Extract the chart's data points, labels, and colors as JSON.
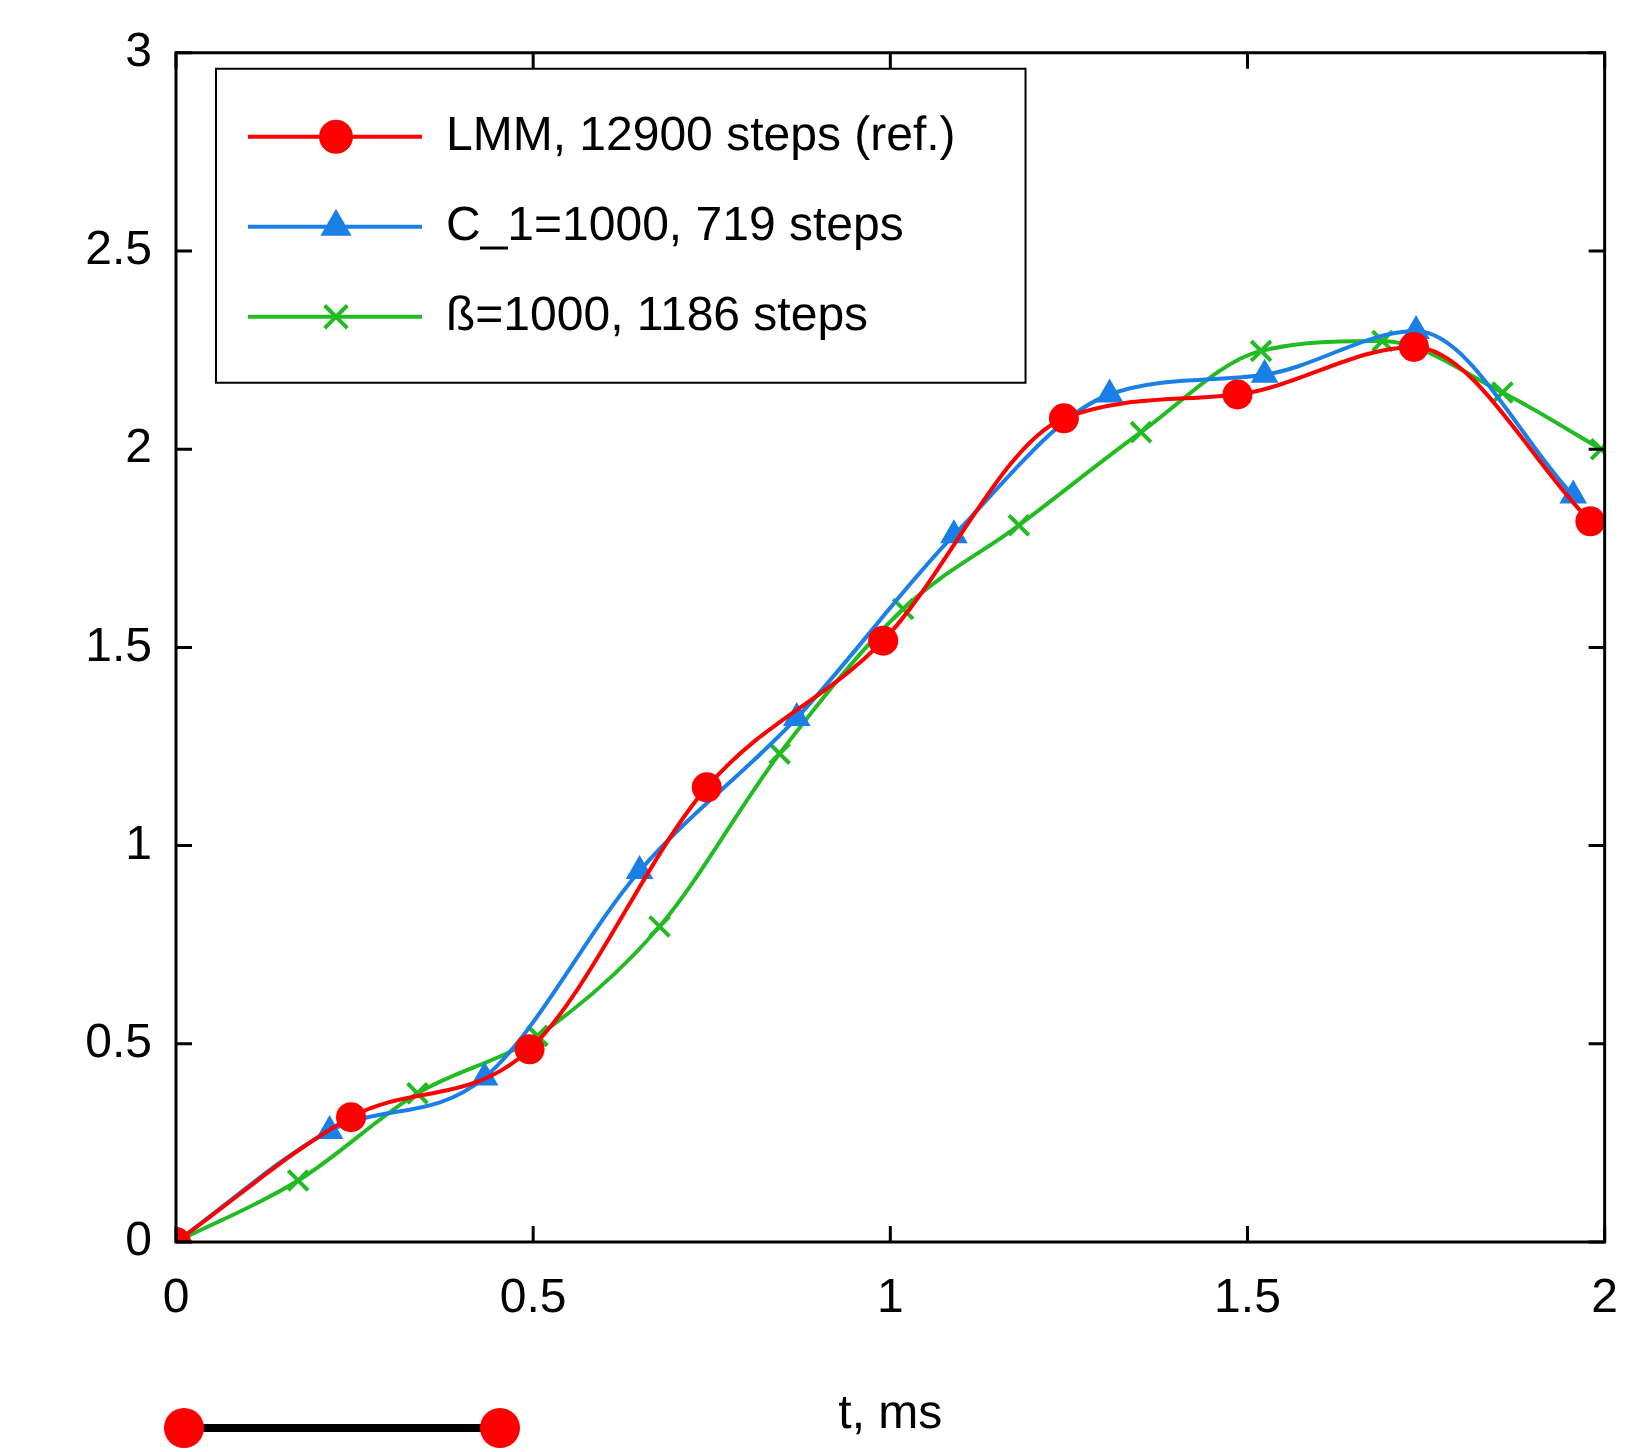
{
  "chart_data": {
    "type": "line",
    "xlabel": "t, ms",
    "xlim": [
      0,
      2
    ],
    "xticks": [
      0,
      0.5,
      1,
      1.5,
      2
    ],
    "ylim": [
      0,
      3
    ],
    "yticks": [
      0,
      0.5,
      1,
      1.5,
      2,
      2.5,
      3
    ],
    "grid": false,
    "legend": "top left",
    "line_style": "solid",
    "series": [
      {
        "name": "LMM, 12900 steps (ref.)",
        "color": "#ff0000",
        "marker": "circle",
        "x": [
          0,
          0.245,
          0.495,
          0.743,
          0.99,
          1.243,
          1.486,
          1.733,
          1.98
        ],
        "values": [
          0,
          0.315,
          0.486,
          1.147,
          1.517,
          2.078,
          2.138,
          2.258,
          1.818
        ]
      },
      {
        "name": "C_1=1000, 719 steps",
        "color": "#1a7fe6",
        "marker": "triangle",
        "x": [
          0,
          0.215,
          0.432,
          0.649,
          0.869,
          1.089,
          1.307,
          1.524,
          1.736,
          1.956
        ],
        "values": [
          0,
          0.28,
          0.415,
          0.936,
          1.322,
          1.783,
          2.138,
          2.188,
          2.298,
          1.883
        ]
      },
      {
        "name": "ß=1000, 1186 steps",
        "color": "#22bb22",
        "marker": "cross",
        "x": [
          0,
          0.171,
          0.338,
          0.506,
          0.677,
          0.845,
          1.018,
          1.18,
          1.351,
          1.519,
          1.689,
          1.857,
          1.995
        ],
        "values": [
          0,
          0.155,
          0.375,
          0.52,
          0.796,
          1.232,
          1.597,
          1.808,
          2.043,
          2.248,
          2.273,
          2.143,
          2.0
        ]
      }
    ]
  }
}
